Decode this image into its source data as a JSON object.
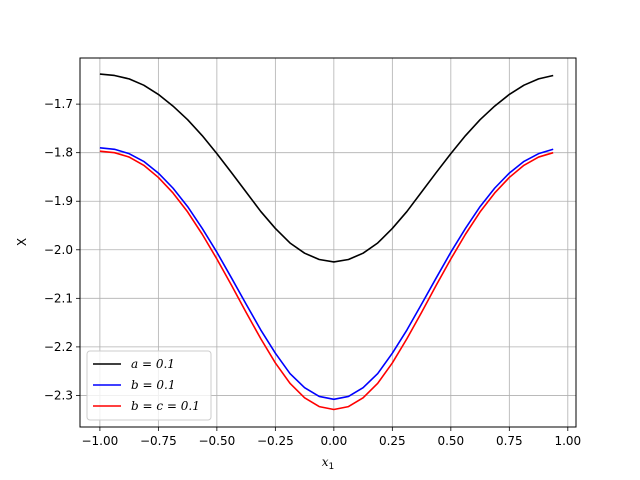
{
  "chart_data": {
    "type": "line",
    "title": "",
    "xlabel": "x",
    "xlabel_sub": "1",
    "ylabel": "X",
    "xlim": [
      -1.085,
      1.035
    ],
    "ylim": [
      -2.365,
      -1.605
    ],
    "grid": true,
    "legend_position": "lower-left",
    "x_ticks": [
      -1.0,
      -0.75,
      -0.5,
      -0.25,
      0.0,
      0.25,
      0.5,
      0.75,
      1.0
    ],
    "x_tick_labels": [
      "−1.00",
      "−0.75",
      "−0.50",
      "−0.25",
      "0.00",
      "0.25",
      "0.50",
      "0.75",
      "1.00"
    ],
    "y_ticks": [
      -2.3,
      -2.2,
      -2.1,
      -2.0,
      -1.9,
      -1.8,
      -1.7
    ],
    "y_tick_labels": [
      "−2.3",
      "−2.2",
      "−2.1",
      "−2.0",
      "−1.9",
      "−1.8",
      "−1.7"
    ],
    "x": [
      -1.0,
      -0.9375,
      -0.875,
      -0.8125,
      -0.75,
      -0.6875,
      -0.625,
      -0.5625,
      -0.5,
      -0.4375,
      -0.375,
      -0.3125,
      -0.25,
      -0.1875,
      -0.125,
      -0.0625,
      0.0,
      0.0625,
      0.125,
      0.1875,
      0.25,
      0.3125,
      0.375,
      0.4375,
      0.5,
      0.5625,
      0.625,
      0.6875,
      0.75,
      0.8125,
      0.875,
      0.9375
    ],
    "series": [
      {
        "name": "a = 0.1",
        "color": "#000000",
        "values": [
          -1.638,
          -1.641,
          -1.648,
          -1.661,
          -1.68,
          -1.704,
          -1.732,
          -1.765,
          -1.802,
          -1.841,
          -1.881,
          -1.921,
          -1.956,
          -1.986,
          -2.007,
          -2.02,
          -2.025,
          -2.02,
          -2.007,
          -1.986,
          -1.956,
          -1.921,
          -1.881,
          -1.841,
          -1.802,
          -1.765,
          -1.732,
          -1.704,
          -1.68,
          -1.661,
          -1.648,
          -1.641
        ]
      },
      {
        "name": "b = 0.1",
        "color": "#0000ff",
        "values": [
          -1.79,
          -1.793,
          -1.802,
          -1.818,
          -1.842,
          -1.873,
          -1.911,
          -1.956,
          -2.005,
          -2.058,
          -2.112,
          -2.165,
          -2.213,
          -2.255,
          -2.284,
          -2.302,
          -2.308,
          -2.302,
          -2.284,
          -2.255,
          -2.213,
          -2.165,
          -2.112,
          -2.058,
          -2.005,
          -1.956,
          -1.911,
          -1.873,
          -1.842,
          -1.818,
          -1.802,
          -1.793
        ]
      },
      {
        "name": "b = c = 0.1",
        "color": "#ff0000",
        "values": [
          -1.797,
          -1.8,
          -1.809,
          -1.826,
          -1.851,
          -1.883,
          -1.922,
          -1.968,
          -2.019,
          -2.073,
          -2.129,
          -2.183,
          -2.233,
          -2.275,
          -2.305,
          -2.323,
          -2.329,
          -2.323,
          -2.305,
          -2.275,
          -2.233,
          -2.183,
          -2.129,
          -2.073,
          -2.019,
          -1.968,
          -1.922,
          -1.883,
          -1.851,
          -1.826,
          -1.809,
          -1.8
        ]
      }
    ]
  }
}
